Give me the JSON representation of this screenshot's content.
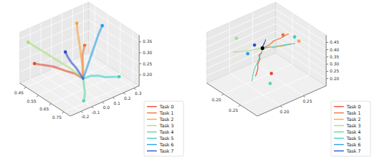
{
  "chart_data": [
    {
      "type": "line3d",
      "legend": "lower right",
      "grid": true,
      "marker": "circle",
      "xlim": [
        0.4,
        0.8
      ],
      "xticks": [
        0.45,
        0.55,
        0.65,
        0.75
      ],
      "ylim": [
        -0.3,
        0.35
      ],
      "yticks": [
        -0.2,
        -0.1,
        {
          "value": 0,
          "label": "0.0"
        },
        0.1,
        0.2,
        0.3
      ],
      "zlim": [
        0.15,
        0.38
      ],
      "zticks": [
        {
          "value": 0.2,
          "label": "0.20"
        },
        0.25,
        {
          "value": 0.3,
          "label": "0.30"
        },
        0.35
      ],
      "series": [
        {
          "name": "Task 0",
          "color": "#e34a33",
          "goal": [
            0.45,
            -0.22,
            0.24
          ],
          "x": [
            0.65,
            0.62,
            0.58,
            0.53,
            0.48,
            0.45
          ],
          "y": [
            0.0,
            -0.04,
            -0.09,
            -0.14,
            -0.19,
            -0.22
          ],
          "z": [
            0.2,
            0.22,
            0.23,
            0.24,
            0.24,
            0.24
          ]
        },
        {
          "name": "Task 1",
          "color": "#f0703a",
          "goal": [
            0.62,
            0.05,
            0.33
          ],
          "x": [
            0.65,
            0.64,
            0.63,
            0.62,
            0.62,
            0.62
          ],
          "y": [
            0.0,
            0.01,
            0.02,
            0.03,
            0.04,
            0.05
          ],
          "z": [
            0.2,
            0.23,
            0.26,
            0.29,
            0.31,
            0.33
          ]
        },
        {
          "name": "Task 2",
          "color": "#f5a442",
          "goal": [
            0.5,
            0.12,
            0.37
          ],
          "x": [
            0.65,
            0.62,
            0.58,
            0.55,
            0.52,
            0.5
          ],
          "y": [
            0.0,
            0.03,
            0.06,
            0.08,
            0.1,
            0.12
          ],
          "z": [
            0.2,
            0.24,
            0.28,
            0.32,
            0.35,
            0.37
          ]
        },
        {
          "name": "Task 3",
          "color": "#a8e07a",
          "goal": [
            0.45,
            -0.28,
            0.35
          ],
          "x": [
            0.65,
            0.6,
            0.56,
            0.51,
            0.47,
            0.45
          ],
          "y": [
            0.0,
            -0.06,
            -0.12,
            -0.18,
            -0.24,
            -0.28
          ],
          "z": [
            0.2,
            0.24,
            0.27,
            0.3,
            0.33,
            0.35
          ]
        },
        {
          "name": "Task 4",
          "color": "#5fd6a0",
          "goal": [
            0.78,
            -0.15,
            0.18
          ],
          "x": [
            0.65,
            0.68,
            0.71,
            0.74,
            0.76,
            0.78
          ],
          "y": [
            0.0,
            -0.03,
            -0.06,
            -0.09,
            -0.12,
            -0.15
          ],
          "z": [
            0.2,
            0.2,
            0.19,
            0.19,
            0.18,
            0.18
          ]
        },
        {
          "name": "Task 5",
          "color": "#3fd0c8",
          "goal": [
            0.75,
            0.22,
            0.2
          ],
          "x": [
            0.65,
            0.67,
            0.69,
            0.71,
            0.73,
            0.75
          ],
          "y": [
            0.0,
            0.05,
            0.09,
            0.14,
            0.18,
            0.22
          ],
          "z": [
            0.2,
            0.21,
            0.21,
            0.2,
            0.2,
            0.2
          ]
        },
        {
          "name": "Task 6",
          "color": "#2a9de8",
          "goal": [
            0.55,
            0.3,
            0.34
          ],
          "x": [
            0.65,
            0.63,
            0.61,
            0.59,
            0.57,
            0.55
          ],
          "y": [
            0.0,
            0.06,
            0.12,
            0.18,
            0.24,
            0.3
          ],
          "z": [
            0.2,
            0.23,
            0.26,
            0.29,
            0.32,
            0.34
          ]
        },
        {
          "name": "Task 7",
          "color": "#2d4fd0",
          "goal": [
            0.56,
            -0.06,
            0.3
          ],
          "x": [
            0.65,
            0.63,
            0.61,
            0.59,
            0.57,
            0.56
          ],
          "y": [
            0.0,
            -0.01,
            -0.02,
            -0.04,
            -0.05,
            -0.06
          ],
          "z": [
            0.2,
            0.22,
            0.24,
            0.26,
            0.28,
            0.3
          ]
        }
      ]
    },
    {
      "type": "line3d",
      "legend": "lower right",
      "grid": true,
      "marker": "circle",
      "start": [
        0.22,
        0.22,
        0.4
      ],
      "xlim": [
        0.15,
        0.3
      ],
      "xticks": [
        {
          "value": 0.2,
          "label": "0.20"
        },
        0.25
      ],
      "ylim": [
        0.15,
        0.3
      ],
      "yticks": [
        {
          "value": 0.2,
          "label": "0.20"
        },
        0.25
      ],
      "zlim": [
        0.15,
        0.5
      ],
      "zticks": [
        {
          "value": 0.2,
          "label": "0.20"
        },
        0.25,
        {
          "value": 0.3,
          "label": "0.30"
        },
        0.35,
        {
          "value": 0.4,
          "label": "0.40"
        },
        0.45
      ],
      "series": [
        {
          "name": "Task 0",
          "color": "#e34a33",
          "goal": [
            0.26,
            0.21,
            0.3
          ],
          "x": [
            0.22,
            0.225,
            0.223,
            0.232,
            0.236,
            0.242,
            0.247,
            0.25
          ],
          "y": [
            0.22,
            0.215,
            0.21,
            0.206,
            0.198,
            0.194,
            0.188,
            0.183
          ],
          "z": [
            0.4,
            0.385,
            0.37,
            0.362,
            0.345,
            0.33,
            0.318,
            0.305
          ]
        },
        {
          "name": "Task 1",
          "color": "#f0703a",
          "goal": [
            0.24,
            0.25,
            0.48
          ],
          "x": [
            0.22,
            0.224,
            0.228,
            0.226,
            0.232,
            0.235,
            0.238,
            0.24
          ],
          "y": [
            0.22,
            0.226,
            0.232,
            0.24,
            0.246,
            0.252,
            0.258,
            0.262
          ],
          "z": [
            0.4,
            0.41,
            0.425,
            0.432,
            0.445,
            0.452,
            0.465,
            0.47
          ]
        },
        {
          "name": "Task 2",
          "color": "#f5a442",
          "goal": [
            0.26,
            0.27,
            0.44
          ],
          "x": [
            0.22,
            0.226,
            0.23,
            0.236,
            0.24,
            0.246,
            0.25,
            0.255
          ],
          "y": [
            0.22,
            0.224,
            0.23,
            0.233,
            0.238,
            0.244,
            0.25,
            0.256
          ],
          "z": [
            0.4,
            0.405,
            0.412,
            0.408,
            0.416,
            0.42,
            0.425,
            0.43
          ]
        },
        {
          "name": "Task 3",
          "color": "#a8e07a",
          "goal": [
            0.17,
            0.2,
            0.42
          ],
          "x": [
            0.22,
            0.215,
            0.21,
            0.204,
            0.198,
            0.192,
            0.186,
            0.18
          ],
          "y": [
            0.22,
            0.214,
            0.21,
            0.204,
            0.198,
            0.194,
            0.19,
            0.186
          ],
          "z": [
            0.4,
            0.395,
            0.39,
            0.382,
            0.376,
            0.37,
            0.365,
            0.36
          ]
        },
        {
          "name": "Task 4",
          "color": "#5fd6a0",
          "goal": [
            0.27,
            0.2,
            0.26
          ],
          "x": [
            0.22,
            0.225,
            0.228,
            0.232,
            0.236,
            0.24,
            0.245,
            0.25
          ],
          "y": [
            0.22,
            0.214,
            0.206,
            0.2,
            0.192,
            0.186,
            0.18,
            0.175
          ],
          "z": [
            0.4,
            0.38,
            0.36,
            0.345,
            0.33,
            0.31,
            0.295,
            0.28
          ]
        },
        {
          "name": "Task 5",
          "color": "#3fd0c8",
          "goal": [
            0.22,
            0.29,
            0.38
          ],
          "x": [
            0.22,
            0.226,
            0.232,
            0.238,
            0.244,
            0.25,
            0.256,
            0.262
          ],
          "y": [
            0.22,
            0.226,
            0.232,
            0.236,
            0.242,
            0.248,
            0.254,
            0.26
          ],
          "z": [
            0.4,
            0.405,
            0.41,
            0.418,
            0.424,
            0.43,
            0.436,
            0.44
          ]
        },
        {
          "name": "Task 6",
          "color": "#2a9de8",
          "goal": [
            0.19,
            0.21,
            0.33
          ],
          "x": [
            0.22,
            0.217,
            0.213,
            0.21,
            0.206,
            0.203,
            0.2,
            0.197
          ],
          "y": [
            0.22,
            0.223,
            0.226,
            0.228,
            0.232,
            0.236,
            0.238,
            0.24
          ],
          "z": [
            0.4,
            0.392,
            0.396,
            0.388,
            0.384,
            0.38,
            0.376,
            0.372
          ]
        },
        {
          "name": "Task 7",
          "color": "#2d4fd0",
          "goal": [
            0.21,
            0.21,
            0.42
          ],
          "x": [
            0.22,
            0.218,
            0.216,
            0.214,
            0.212,
            0.21,
            0.208,
            0.206
          ],
          "y": [
            0.22,
            0.222,
            0.224,
            0.227,
            0.23,
            0.232,
            0.235,
            0.237
          ],
          "z": [
            0.4,
            0.405,
            0.398,
            0.406,
            0.41,
            0.404,
            0.412,
            0.414
          ]
        }
      ]
    }
  ]
}
